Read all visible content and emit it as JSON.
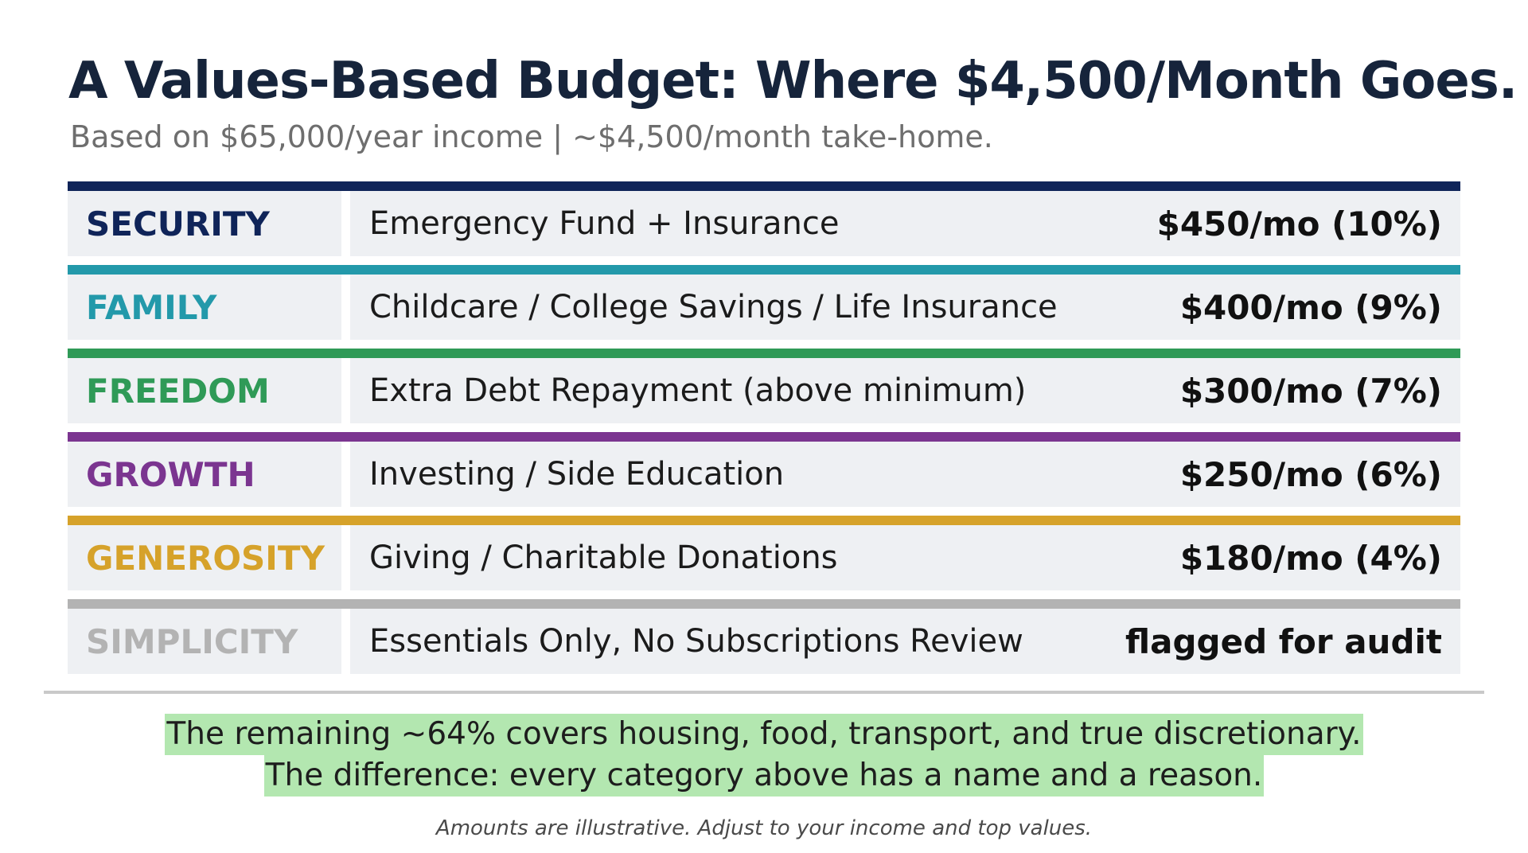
{
  "title": "A Values-Based Budget: Where $4,500/Month Goes.",
  "subtitle": "Based on $65,000/year income | ~$4,500/month take-home.",
  "rows": [
    {
      "category": "SECURITY",
      "description": "Emergency Fund + Insurance",
      "amount": "$450/mo (10%)",
      "color": "#0f2459"
    },
    {
      "category": "FAMILY",
      "description": "Childcare / College Savings / Life Insurance",
      "amount": "$400/mo (9%)",
      "color": "#2399aa"
    },
    {
      "category": "FREEDOM",
      "description": "Extra Debt Repayment (above minimum)",
      "amount": "$300/mo (7%)",
      "color": "#2f9a57"
    },
    {
      "category": "GROWTH",
      "description": "Investing / Side Education",
      "amount": "$250/mo (6%)",
      "color": "#7b3590"
    },
    {
      "category": "GENEROSITY",
      "description": "Giving / Charitable Donations",
      "amount": "$180/mo (4%)",
      "color": "#d6a22a"
    },
    {
      "category": "SIMPLICITY",
      "description": "Essentials Only, No Subscriptions Review",
      "amount": "flagged for audit",
      "color": "#b3b3b3"
    }
  ],
  "summary": {
    "line1": "The remaining ~64% covers housing, food, transport, and true discretionary.",
    "line2": "The difference: every category above has a name and a reason."
  },
  "footnote": "Amounts are illustrative. Adjust to your income and top values.",
  "colors": {
    "title": "#16243b",
    "row_background": "#eef0f3",
    "highlight": "#b3e7b0"
  }
}
